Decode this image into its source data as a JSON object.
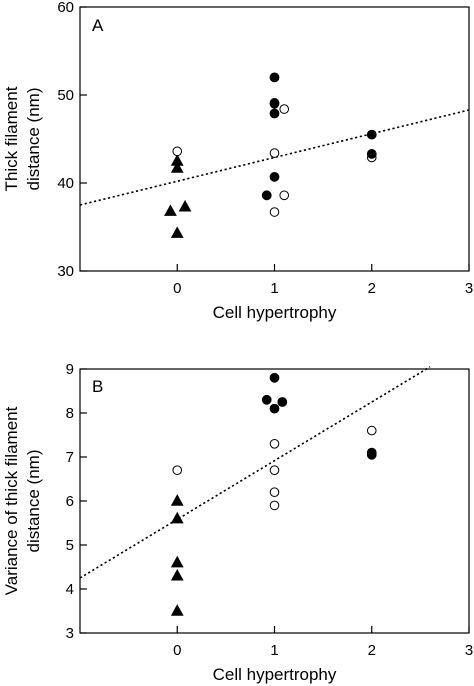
{
  "chart_data": [
    {
      "type": "scatter",
      "panel_label": "A",
      "xlabel": "Cell hypertrophy",
      "ylabel_lines": [
        "Thick filament",
        "distance (nm)"
      ],
      "xlim": [
        -1,
        3
      ],
      "ylim": [
        30,
        60
      ],
      "xticks": [
        0,
        1,
        2,
        3
      ],
      "yticks": [
        30,
        40,
        50,
        60
      ],
      "grid": false,
      "series": [
        {
          "marker": "triangle-filled",
          "points": [
            [
              0,
              42.5
            ],
            [
              0,
              41.7
            ],
            [
              -0.07,
              36.8
            ],
            [
              0.08,
              37.3
            ],
            [
              0,
              34.3
            ]
          ]
        },
        {
          "marker": "circle-open",
          "points": [
            [
              0,
              43.6
            ],
            [
              1,
              49
            ],
            [
              1.1,
              48.4
            ],
            [
              1,
              43.4
            ],
            [
              1.1,
              38.6
            ],
            [
              1,
              36.7
            ],
            [
              2,
              42.9
            ]
          ]
        },
        {
          "marker": "circle-filled",
          "points": [
            [
              1,
              52
            ],
            [
              1,
              49.1
            ],
            [
              1,
              47.9
            ],
            [
              0.92,
              38.6
            ],
            [
              1,
              40.7
            ],
            [
              2,
              45.5
            ],
            [
              2,
              43.3
            ]
          ]
        }
      ],
      "trendline": {
        "style": "dotted",
        "from": [
          -1,
          37.5
        ],
        "to": [
          3,
          48.3
        ]
      }
    },
    {
      "type": "scatter",
      "panel_label": "B",
      "xlabel": "Cell hypertrophy",
      "ylabel_lines": [
        "Variance of thick filament",
        "distance (nm)"
      ],
      "xlim": [
        -1,
        3
      ],
      "ylim": [
        3,
        9
      ],
      "xticks": [
        0,
        1,
        2,
        3
      ],
      "yticks": [
        3,
        4,
        5,
        6,
        7,
        8,
        9
      ],
      "grid": false,
      "series": [
        {
          "marker": "triangle-filled",
          "points": [
            [
              0,
              6
            ],
            [
              0,
              5.6
            ],
            [
              0,
              4.6
            ],
            [
              0,
              4.3
            ],
            [
              0,
              3.5
            ]
          ]
        },
        {
          "marker": "circle-open",
          "points": [
            [
              0,
              6.7
            ],
            [
              1,
              7.3
            ],
            [
              1,
              6.7
            ],
            [
              1,
              6.2
            ],
            [
              1,
              5.9
            ],
            [
              2,
              7.6
            ]
          ]
        },
        {
          "marker": "circle-filled",
          "points": [
            [
              1,
              8.8
            ],
            [
              0.92,
              8.3
            ],
            [
              1.08,
              8.25
            ],
            [
              1,
              8.1
            ],
            [
              2,
              7.1
            ],
            [
              2,
              7.05
            ]
          ]
        }
      ],
      "trendline": {
        "style": "dotted",
        "from": [
          -1,
          4.25
        ],
        "to": [
          2.6,
          9.05
        ]
      }
    }
  ]
}
